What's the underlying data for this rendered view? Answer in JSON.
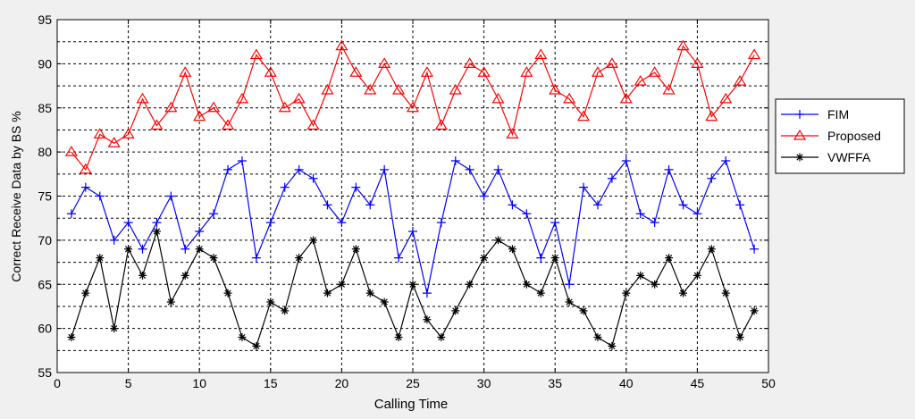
{
  "chart_data": {
    "type": "line",
    "title": "",
    "xlabel": "Calling Time",
    "ylabel": "Correct Receive Data by BS %",
    "xlim": [
      0,
      50
    ],
    "ylim": [
      55,
      95
    ],
    "xticks": [
      0,
      5,
      10,
      15,
      20,
      25,
      30,
      35,
      40,
      45,
      50
    ],
    "yticks": [
      55,
      60,
      65,
      70,
      75,
      80,
      85,
      90,
      95
    ],
    "minor_grid_y_step": 2.5,
    "grid": true,
    "legend_position": "right",
    "x": [
      1,
      2,
      3,
      4,
      5,
      6,
      7,
      8,
      9,
      10,
      11,
      12,
      13,
      14,
      15,
      16,
      17,
      18,
      19,
      20,
      21,
      22,
      23,
      24,
      25,
      26,
      27,
      28,
      29,
      30,
      31,
      32,
      33,
      34,
      35,
      36,
      37,
      38,
      39,
      40,
      41,
      42,
      43,
      44,
      45,
      46,
      47,
      48,
      49
    ],
    "series": [
      {
        "name": "FIM",
        "color": "#0000ff",
        "marker": "plus",
        "values": [
          73,
          76,
          75,
          70,
          72,
          69,
          72,
          75,
          69,
          71,
          73,
          78,
          79,
          68,
          72,
          76,
          78,
          77,
          74,
          72,
          76,
          74,
          78,
          68,
          71,
          64,
          72,
          79,
          78,
          75,
          78,
          74,
          73,
          68,
          72,
          65,
          76,
          74,
          77,
          79,
          73,
          72,
          78,
          74,
          73,
          77,
          79,
          74,
          69
        ]
      },
      {
        "name": "Proposed",
        "color": "#ff0000",
        "marker": "triangle",
        "values": [
          80,
          78,
          82,
          81,
          82,
          86,
          83,
          85,
          89,
          84,
          85,
          83,
          86,
          91,
          89,
          85,
          86,
          83,
          87,
          92,
          89,
          87,
          90,
          87,
          85,
          89,
          83,
          87,
          90,
          89,
          86,
          82,
          89,
          91,
          87,
          86,
          84,
          89,
          90,
          86,
          88,
          89,
          87,
          92,
          90,
          84,
          86,
          88,
          91
        ]
      },
      {
        "name": "VWFFA",
        "color": "#000000",
        "marker": "asterisk",
        "values": [
          59,
          64,
          68,
          60,
          69,
          66,
          71,
          63,
          66,
          69,
          68,
          64,
          59,
          58,
          63,
          62,
          68,
          70,
          64,
          65,
          69,
          64,
          63,
          59,
          65,
          61,
          59,
          62,
          65,
          68,
          70,
          69,
          65,
          64,
          68,
          63,
          62,
          59,
          58,
          64,
          66,
          65,
          68,
          64,
          66,
          69,
          64,
          59,
          62
        ]
      }
    ]
  }
}
